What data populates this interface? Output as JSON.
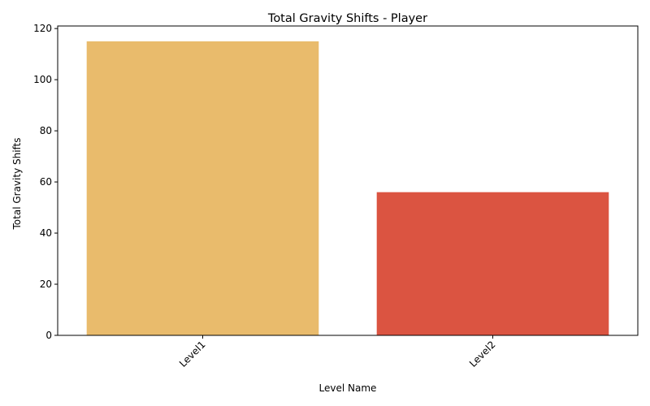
{
  "chart_data": {
    "type": "bar",
    "title": "Total Gravity Shifts - Player",
    "xlabel": "Level Name",
    "ylabel": "Total Gravity Shifts",
    "categories": [
      "Level1",
      "Level2"
    ],
    "values": [
      115,
      56
    ],
    "colors": [
      "#e9bb6c",
      "#db5441"
    ],
    "ylim": [
      0,
      121
    ],
    "yticks": [
      0,
      20,
      40,
      60,
      80,
      100,
      120
    ],
    "xtick_rotation_deg": 45,
    "grid": false,
    "legend": "none"
  }
}
